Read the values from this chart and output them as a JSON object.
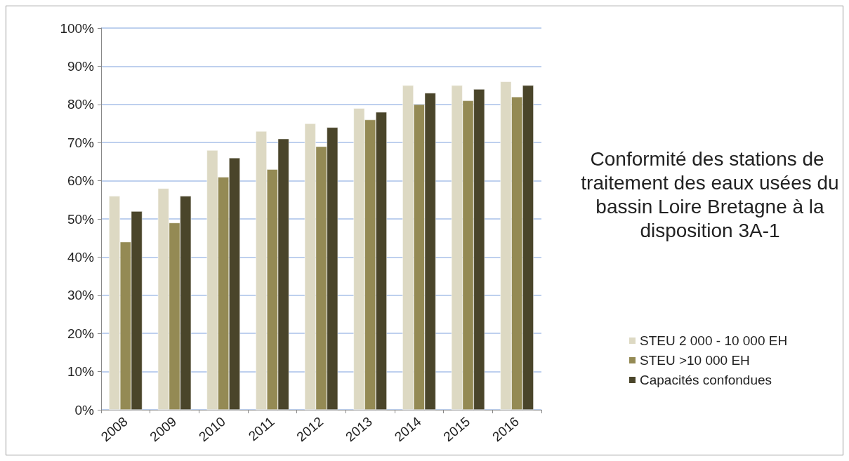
{
  "chart_data": {
    "type": "bar",
    "title": "Conformité des stations de traitement des eaux usées du bassin Loire Bretagne à la disposition 3A-1",
    "categories": [
      "2008",
      "2009",
      "2010",
      "2011",
      "2012",
      "2013",
      "2014",
      "2015",
      "2016"
    ],
    "series": [
      {
        "name": "STEU 2 000 - 10 000 EH",
        "color": "#ddd9c3",
        "values": [
          56,
          58,
          68,
          73,
          75,
          79,
          85,
          85,
          86
        ]
      },
      {
        "name": "STEU >10 000 EH",
        "color": "#948a54",
        "values": [
          44,
          49,
          61,
          63,
          69,
          76,
          80,
          81,
          82
        ]
      },
      {
        "name": "Capacités confondues",
        "color": "#4a452a",
        "values": [
          52,
          56,
          66,
          71,
          74,
          78,
          83,
          84,
          85
        ]
      }
    ],
    "ylim": [
      0,
      100
    ],
    "yticks": [
      {
        "value": 0,
        "label": "0%"
      },
      {
        "value": 10,
        "label": "10%"
      },
      {
        "value": 20,
        "label": "20%"
      },
      {
        "value": 30,
        "label": "30%"
      },
      {
        "value": 40,
        "label": "40%"
      },
      {
        "value": 50,
        "label": "50%"
      },
      {
        "value": 60,
        "label": "60%"
      },
      {
        "value": 70,
        "label": "70%"
      },
      {
        "value": 80,
        "label": "80%"
      },
      {
        "value": 90,
        "label": "90%"
      },
      {
        "value": 100,
        "label": "100%"
      }
    ],
    "grid": "y",
    "legend": "right"
  }
}
